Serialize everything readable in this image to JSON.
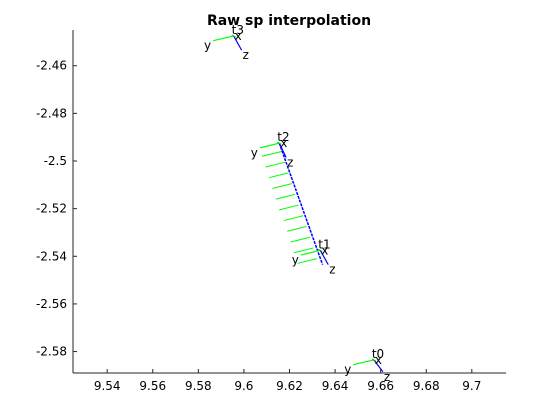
{
  "chart_data": {
    "type": "scatter",
    "title": "Raw sp interpolation",
    "xlabel": "",
    "ylabel": "",
    "xlim": [
      9.525,
      9.715
    ],
    "ylim": [
      -2.589,
      -2.445
    ],
    "x_ticks": [
      9.54,
      9.56,
      9.58,
      9.6,
      9.62,
      9.64,
      9.66,
      9.68,
      9.7
    ],
    "x_tick_labels": [
      "9.54",
      "9.56",
      "9.58",
      "9.6",
      "9.62",
      "9.64",
      "9.66",
      "9.68",
      "9.7"
    ],
    "y_ticks": [
      -2.46,
      -2.48,
      -2.5,
      -2.52,
      -2.54,
      -2.56,
      -2.58
    ],
    "y_tick_labels": [
      "-2.46",
      "-2.48",
      "-2.5",
      "-2.52",
      "-2.54",
      "-2.56",
      "-2.58"
    ],
    "grid": false,
    "axis_colors": {
      "x": "#00cc00",
      "y": "#00ff00",
      "z": "#0000ff",
      "path": "#0000ff",
      "interp": "#00ff00"
    },
    "frames": [
      {
        "label": "t0",
        "origin": [
          9.657,
          -2.5835
        ],
        "x_label": "x",
        "y_label": "y",
        "z_label": "z",
        "y_end": [
          9.648,
          -2.5855
        ],
        "z_end": [
          9.661,
          -2.5885
        ]
      },
      {
        "label": "t1",
        "origin": [
          9.6335,
          -2.5375
        ],
        "x_label": "x",
        "y_label": "y",
        "z_label": "z",
        "y_end": [
          9.625,
          -2.5395
        ],
        "z_end": [
          9.637,
          -2.5435
        ]
      },
      {
        "label": "t2",
        "origin": [
          9.6155,
          -2.4925
        ],
        "x_label": "x",
        "y_label": "y",
        "z_label": "z",
        "y_end": [
          9.607,
          -2.4945
        ],
        "z_end": [
          9.6185,
          -2.4985
        ]
      },
      {
        "label": "t3",
        "origin": [
          9.5955,
          -2.4475
        ],
        "x_label": "x",
        "y_label": "y",
        "z_label": "z",
        "y_end": [
          9.5865,
          -2.4495
        ],
        "z_end": [
          9.599,
          -2.4535
        ]
      }
    ],
    "interpolation": {
      "start": [
        9.6155,
        -2.4925
      ],
      "end": [
        9.6345,
        -2.5435
      ],
      "samples": [
        [
          9.6165,
          -2.496
        ],
        [
          9.618,
          -2.5005
        ],
        [
          9.6195,
          -2.505
        ],
        [
          9.621,
          -2.5095
        ],
        [
          9.6225,
          -2.514
        ],
        [
          9.624,
          -2.5185
        ],
        [
          9.626,
          -2.523
        ],
        [
          9.6275,
          -2.5275
        ],
        [
          9.629,
          -2.532
        ],
        [
          9.6305,
          -2.5365
        ],
        [
          9.632,
          -2.541
        ]
      ],
      "whisker_dx": -0.0085,
      "whisker_dy": -0.002
    }
  }
}
